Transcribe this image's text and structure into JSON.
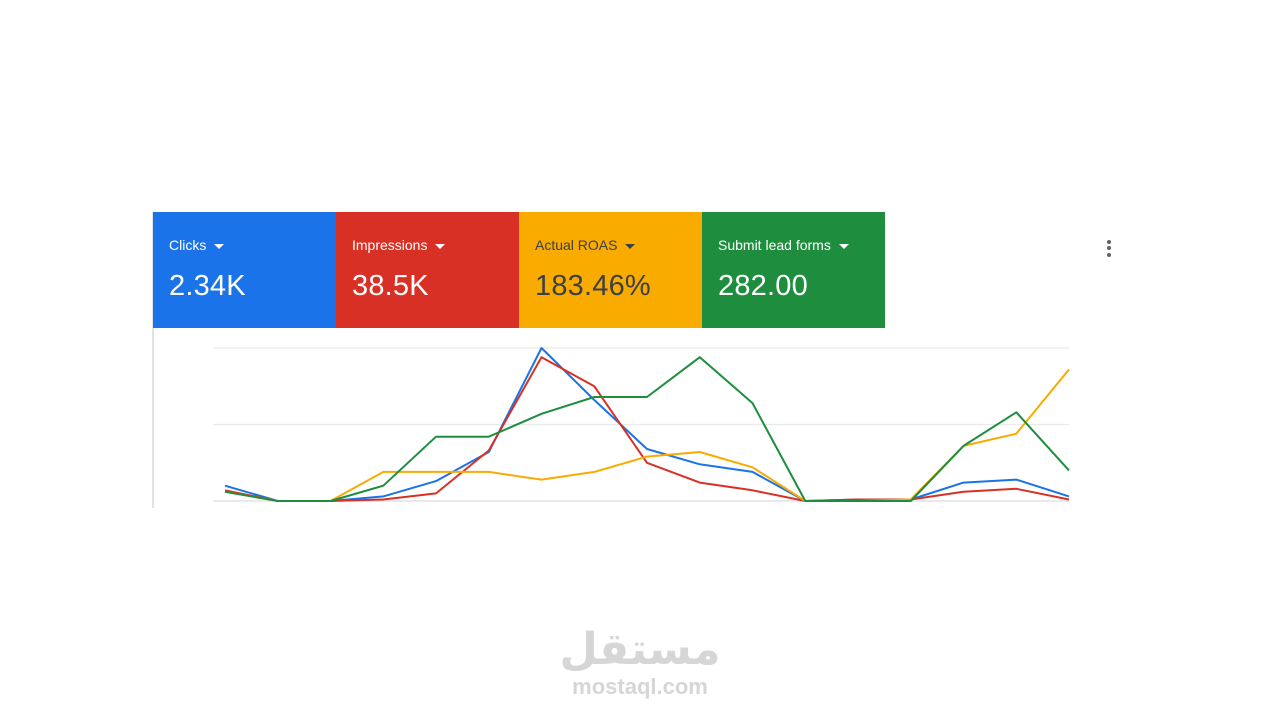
{
  "metrics": [
    {
      "label": "Clicks",
      "value": "2.34K",
      "color": "#1a73e8"
    },
    {
      "label": "Impressions",
      "value": "38.5K",
      "color": "#d93025"
    },
    {
      "label": "Actual ROAS",
      "value": "183.46%",
      "color": "#f9ab00"
    },
    {
      "label": "Submit lead forms",
      "value": "282.00",
      "color": "#1e8e3e"
    }
  ],
  "menu": {
    "icon": "more-vert-icon"
  },
  "chart_data": {
    "type": "line",
    "grid": true,
    "legend": "none",
    "ylim": [
      0,
      100
    ],
    "x": [
      1,
      2,
      3,
      4,
      5,
      6,
      7,
      8,
      9,
      10,
      11,
      12,
      13,
      14,
      15,
      16,
      17
    ],
    "series": [
      {
        "name": "Clicks",
        "color": "#1a73e8",
        "values": [
          10,
          0,
          0,
          3,
          13,
          32,
          100,
          66,
          34,
          24,
          19,
          0,
          1,
          1,
          12,
          14,
          3
        ]
      },
      {
        "name": "Impressions",
        "color": "#d93025",
        "values": [
          7,
          0,
          0,
          1,
          5,
          33,
          94,
          75,
          25,
          12,
          7,
          0,
          1,
          1,
          6,
          8,
          1
        ]
      },
      {
        "name": "Actual ROAS",
        "color": "#f9ab00",
        "values": [
          6,
          0,
          0,
          19,
          19,
          19,
          14,
          19,
          29,
          32,
          22,
          0,
          0,
          1,
          36,
          44,
          86
        ]
      },
      {
        "name": "Submit lead forms",
        "color": "#1e8e3e",
        "values": [
          6,
          0,
          0,
          10,
          42,
          42,
          57,
          68,
          68,
          94,
          64,
          0,
          0,
          0,
          36,
          58,
          20
        ]
      }
    ]
  },
  "watermark": {
    "arabic": "مستقل",
    "latin": "mostaql.com"
  }
}
